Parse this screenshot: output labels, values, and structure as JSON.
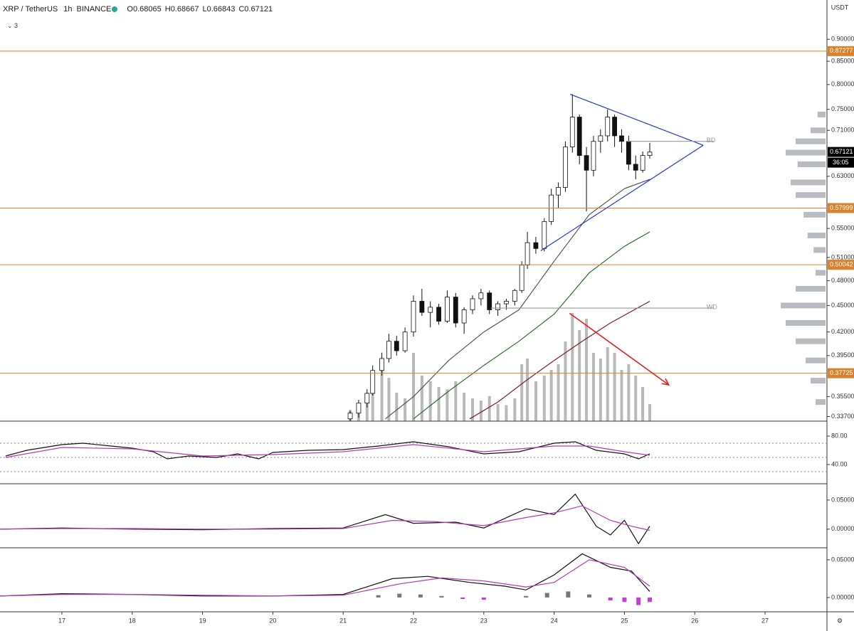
{
  "chart_data": [
    {
      "type": "candlestick",
      "symbol": "XRP / TetherUS",
      "interval": "1h",
      "exchange": "BINANCE",
      "ohlc": [
        {
          "label": "O",
          "value": "0.68065"
        },
        {
          "label": "H",
          "value": "0.68667"
        },
        {
          "label": "L",
          "value": "0.66843"
        },
        {
          "label": "C",
          "value": "0.67121"
        }
      ],
      "indicator_count": "3",
      "currency": "USDT",
      "last_price": 0.67121,
      "countdown": "36:05",
      "log_scale": true,
      "xlim": [
        16.12,
        27.88
      ],
      "xticks": [
        17,
        18,
        19,
        20,
        21,
        22,
        23,
        24,
        25,
        26,
        27
      ],
      "ylim": [
        0.333,
        0.997
      ],
      "yticks": [
        {
          "value": 0.9,
          "label": "0.90000"
        },
        {
          "value": 0.85,
          "label": "0.85000"
        },
        {
          "value": 0.8,
          "label": "0.80000"
        },
        {
          "value": 0.75,
          "label": "0.75000"
        },
        {
          "value": 0.71,
          "label": "0.71000"
        },
        {
          "value": 0.63,
          "label": "0.63000"
        },
        {
          "value": 0.55,
          "label": "0.55000"
        },
        {
          "value": 0.51,
          "label": "0.51000"
        },
        {
          "value": 0.48,
          "label": "0.48000"
        },
        {
          "value": 0.45,
          "label": "0.45000"
        },
        {
          "value": 0.42,
          "label": "0.42000"
        },
        {
          "value": 0.395,
          "label": "0.39500"
        },
        {
          "value": 0.355,
          "label": "0.35500"
        },
        {
          "value": 0.337,
          "label": "0.33700"
        }
      ],
      "x": [
        21.1,
        21.22,
        21.34,
        21.42,
        21.55,
        21.65,
        21.76,
        21.88,
        22.0,
        22.12,
        22.24,
        22.36,
        22.48,
        22.6,
        22.72,
        22.84,
        22.96,
        23.08,
        23.2,
        23.32,
        23.44,
        23.54,
        23.62,
        23.74,
        23.86,
        23.96,
        24.06,
        24.16,
        24.26,
        24.36,
        24.46,
        24.56,
        24.66,
        24.76,
        24.86,
        24.96,
        25.06,
        25.16,
        25.26,
        25.36
      ],
      "open": [
        0.335,
        0.34,
        0.349,
        0.358,
        0.38,
        0.392,
        0.41,
        0.4,
        0.42,
        0.455,
        0.442,
        0.448,
        0.432,
        0.46,
        0.43,
        0.445,
        0.458,
        0.465,
        0.445,
        0.452,
        0.455,
        0.468,
        0.5,
        0.53,
        0.522,
        0.56,
        0.6,
        0.612,
        0.68,
        0.735,
        0.665,
        0.64,
        0.69,
        0.7,
        0.735,
        0.7,
        0.69,
        0.65,
        0.64,
        0.665
      ],
      "high": [
        0.342,
        0.352,
        0.362,
        0.385,
        0.398,
        0.418,
        0.416,
        0.425,
        0.462,
        0.47,
        0.455,
        0.452,
        0.468,
        0.465,
        0.448,
        0.462,
        0.47,
        0.468,
        0.455,
        0.458,
        0.47,
        0.505,
        0.545,
        0.538,
        0.565,
        0.61,
        0.62,
        0.69,
        0.78,
        0.74,
        0.68,
        0.7,
        0.712,
        0.75,
        0.74,
        0.712,
        0.7,
        0.665,
        0.672,
        0.687
      ],
      "low": [
        0.33,
        0.336,
        0.345,
        0.356,
        0.375,
        0.388,
        0.395,
        0.398,
        0.415,
        0.438,
        0.425,
        0.428,
        0.43,
        0.425,
        0.418,
        0.44,
        0.45,
        0.44,
        0.438,
        0.445,
        0.45,
        0.465,
        0.495,
        0.515,
        0.518,
        0.555,
        0.58,
        0.605,
        0.67,
        0.65,
        0.575,
        0.63,
        0.67,
        0.69,
        0.68,
        0.67,
        0.64,
        0.625,
        0.636,
        0.66
      ],
      "close": [
        0.34,
        0.349,
        0.358,
        0.38,
        0.392,
        0.41,
        0.4,
        0.42,
        0.455,
        0.442,
        0.448,
        0.432,
        0.46,
        0.43,
        0.445,
        0.458,
        0.465,
        0.445,
        0.452,
        0.455,
        0.468,
        0.5,
        0.53,
        0.522,
        0.56,
        0.6,
        0.612,
        0.68,
        0.735,
        0.665,
        0.64,
        0.69,
        0.7,
        0.735,
        0.7,
        0.69,
        0.65,
        0.64,
        0.665,
        0.671
      ],
      "up_color": "#ffffff",
      "down_color": "#111111",
      "volume": [
        10,
        14,
        22,
        30,
        45,
        38,
        25,
        20,
        60,
        40,
        35,
        30,
        28,
        35,
        25,
        20,
        18,
        22,
        15,
        14,
        20,
        50,
        55,
        35,
        40,
        45,
        50,
        70,
        95,
        80,
        90,
        60,
        55,
        65,
        60,
        45,
        50,
        40,
        30,
        15
      ],
      "volume_color": "#a8a8a8",
      "series": [
        {
          "color": "#555555",
          "x": [
            21.6,
            22.0,
            22.5,
            23.0,
            23.5,
            24.0,
            24.5,
            25.0,
            25.36
          ],
          "values": [
            0.335,
            0.355,
            0.39,
            0.42,
            0.445,
            0.505,
            0.57,
            0.61,
            0.625
          ]
        },
        {
          "color": "#2e6b2e",
          "x": [
            22.0,
            22.5,
            23.0,
            23.5,
            24.0,
            24.5,
            25.0,
            25.36
          ],
          "values": [
            0.335,
            0.36,
            0.385,
            0.41,
            0.44,
            0.49,
            0.525,
            0.545
          ]
        },
        {
          "color": "#7a1f1f",
          "x": [
            22.8,
            23.2,
            23.6,
            24.0,
            24.4,
            24.8,
            25.36
          ],
          "values": [
            0.335,
            0.35,
            0.37,
            0.39,
            0.41,
            0.43,
            0.455
          ]
        }
      ],
      "levels": [
        0.87277,
        0.57999,
        0.50042,
        0.37725
      ],
      "level_color": "#d9822b",
      "drawings": [
        {
          "x": [
            24.23,
            26.12
          ],
          "y": [
            0.78,
            0.683
          ],
          "color": "#2233dd"
        },
        {
          "x": [
            23.81,
            26.12
          ],
          "y": [
            0.519,
            0.683
          ],
          "color": "#2233dd"
        },
        {
          "x": [
            25.03,
            26.27
          ],
          "y": [
            0.69,
            0.69
          ],
          "color": "#999999",
          "label": "BD"
        },
        {
          "x": [
            23.1,
            26.27
          ],
          "y": [
            0.447,
            0.447
          ],
          "color": "#999999",
          "label": "WD"
        },
        {
          "x": [
            24.22,
            25.63
          ],
          "y": [
            0.441,
            0.366
          ],
          "color": "#e02020",
          "arrow": true
        }
      ],
      "volume_profile": {
        "color": "#9aa0a6",
        "prices": [
          0.74,
          0.71,
          0.69,
          0.67,
          0.65,
          0.62,
          0.6,
          0.57,
          0.54,
          0.52,
          0.49,
          0.47,
          0.45,
          0.43,
          0.41,
          0.39,
          0.37,
          0.35
        ],
        "values": [
          8,
          15,
          30,
          40,
          28,
          35,
          30,
          22,
          18,
          12,
          10,
          30,
          45,
          40,
          30,
          20,
          15,
          10
        ]
      }
    },
    {
      "type": "line",
      "ylim": [
        13,
        101
      ],
      "yticks": [
        {
          "value": 80,
          "label": "80.00"
        },
        {
          "value": 40,
          "label": "40.00"
        }
      ],
      "hlines": [
        70,
        50,
        30
      ],
      "series": [
        {
          "color": "#111111",
          "x": [
            16.2,
            16.5,
            17.0,
            17.3,
            17.7,
            18.0,
            18.3,
            18.5,
            18.8,
            19.2,
            19.5,
            19.8,
            20.0,
            20.5,
            21.0,
            21.5,
            22.0,
            22.5,
            23.0,
            23.5,
            24.0,
            24.3,
            24.6,
            25.0,
            25.2,
            25.36
          ],
          "values": [
            52,
            60,
            68,
            70,
            66,
            63,
            58,
            48,
            52,
            50,
            55,
            48,
            57,
            60,
            61,
            66,
            72,
            65,
            55,
            58,
            70,
            72,
            60,
            55,
            48,
            55
          ]
        },
        {
          "color": "#b23ab2",
          "x": [
            16.2,
            17.0,
            18.0,
            19.0,
            20.0,
            21.0,
            22.0,
            23.0,
            24.0,
            24.5,
            25.0,
            25.36
          ],
          "values": [
            50,
            64,
            62,
            52,
            54,
            58,
            68,
            58,
            66,
            66,
            58,
            53
          ]
        }
      ]
    },
    {
      "type": "line",
      "ylim": [
        -0.032,
        0.078
      ],
      "yticks": [
        {
          "value": 0.05,
          "label": "0.05000"
        },
        {
          "value": 0,
          "label": "0.00000"
        }
      ],
      "series": [
        {
          "color": "#111111",
          "x": [
            16.12,
            17,
            18,
            19,
            20,
            21,
            21.6,
            22,
            22.6,
            23,
            23.6,
            24.0,
            24.3,
            24.6,
            24.8,
            25.0,
            25.2,
            25.36
          ],
          "values": [
            0,
            0.002,
            0,
            -0.001,
            0.001,
            0.002,
            0.025,
            0.01,
            0.012,
            0.002,
            0.035,
            0.025,
            0.06,
            0.005,
            -0.01,
            0.015,
            -0.025,
            0.005
          ]
        },
        {
          "color": "#b23ab2",
          "x": [
            16.12,
            17,
            18,
            19,
            20,
            21,
            21.7,
            22.3,
            23,
            23.6,
            24.0,
            24.4,
            24.8,
            25.1,
            25.36
          ],
          "values": [
            0,
            0.001,
            0.001,
            0,
            0,
            0.001,
            0.015,
            0.013,
            0.006,
            0.02,
            0.028,
            0.04,
            0.015,
            0.005,
            -0.002
          ]
        }
      ]
    },
    {
      "type": "line",
      "ylim": [
        -0.019,
        0.066
      ],
      "yticks": [
        {
          "value": 0.05,
          "label": "0.05000"
        },
        {
          "value": 0,
          "label": "0.00000"
        }
      ],
      "series": [
        {
          "color": "#111111",
          "x": [
            16.12,
            17,
            18,
            19,
            20,
            21,
            21.7,
            22.2,
            22.8,
            23.3,
            23.6,
            24.0,
            24.4,
            24.8,
            25.1,
            25.36
          ],
          "values": [
            0.002,
            0.005,
            0.004,
            0.002,
            0.002,
            0.004,
            0.025,
            0.028,
            0.02,
            0.015,
            0.01,
            0.03,
            0.058,
            0.04,
            0.035,
            0.008
          ]
        },
        {
          "color": "#b23ab2",
          "x": [
            16.12,
            17,
            18,
            19,
            20,
            21,
            21.8,
            22.4,
            23.0,
            23.6,
            24.0,
            24.5,
            25.0,
            25.36
          ],
          "values": [
            0.002,
            0.004,
            0.004,
            0.003,
            0.002,
            0.003,
            0.018,
            0.026,
            0.022,
            0.014,
            0.02,
            0.05,
            0.04,
            0.015
          ]
        }
      ],
      "bars": {
        "up_color": "#777777",
        "down_color": "#c040d0",
        "x": [
          21.5,
          21.8,
          22.1,
          22.4,
          22.7,
          23.0,
          23.6,
          23.9,
          24.2,
          24.5,
          24.8,
          25.0,
          25.2,
          25.36
        ],
        "values": [
          0.003,
          0.005,
          0.004,
          0.002,
          -0.002,
          -0.003,
          0.002,
          0.006,
          0.008,
          0.004,
          -0.004,
          -0.006,
          -0.01,
          -0.006
        ]
      }
    }
  ]
}
